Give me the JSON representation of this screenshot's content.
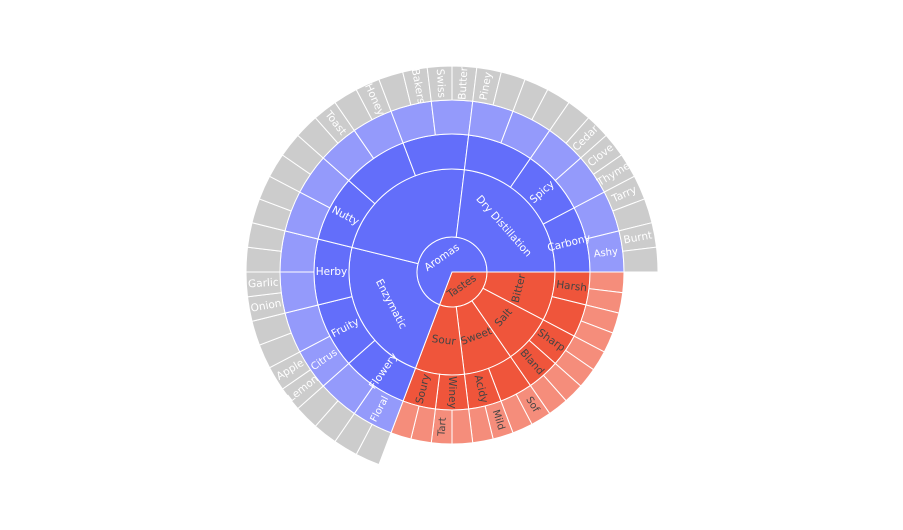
{
  "chart_data": {
    "type": "sunburst",
    "title": "",
    "colors": {
      "aromas_level1": "#636efa",
      "aromas_level2": "#636efa",
      "aromas_level3": "#636efa",
      "aromas_level4": "#949afb",
      "tastes_level1": "#ef553b",
      "tastes_level2": "#ef553b",
      "tastes_level3": "#ef553b",
      "tastes_level4": "#f58d7b",
      "label_on_dark": "#ffffff",
      "label_on_light": "#444444",
      "border": "#ffffff"
    },
    "root": {
      "children": [
        {
          "name": "Aromas",
          "group": "aromas",
          "children": [
            {
              "name": "Enzymatic",
              "children": [
                {
                  "name": "Flowery",
                  "children": [
                    {
                      "name": "Floral",
                      "children": [
                        {
                          "name": ""
                        },
                        {
                          "name": ""
                        }
                      ]
                    },
                    {
                      "name": "",
                      "children": [
                        {
                          "name": ""
                        },
                        {
                          "name": ""
                        }
                      ]
                    }
                  ]
                },
                {
                  "name": "Fruity",
                  "children": [
                    {
                      "name": "Citrus",
                      "children": [
                        {
                          "name": "Lemon"
                        },
                        {
                          "name": "Apple"
                        }
                      ]
                    },
                    {
                      "name": "",
                      "children": [
                        {
                          "name": ""
                        },
                        {
                          "name": ""
                        }
                      ]
                    }
                  ]
                },
                {
                  "name": "Herby",
                  "children": [
                    {
                      "name": "",
                      "children": [
                        {
                          "name": "Onion"
                        },
                        {
                          "name": "Garlic"
                        }
                      ]
                    },
                    {
                      "name": "",
                      "children": [
                        {
                          "name": ""
                        },
                        {
                          "name": ""
                        }
                      ]
                    }
                  ]
                }
              ]
            },
            {
              "name": "",
              "children": [
                {
                  "name": "Nutty",
                  "children": [
                    {
                      "name": "",
                      "children": [
                        {
                          "name": ""
                        },
                        {
                          "name": ""
                        }
                      ]
                    },
                    {
                      "name": "",
                      "children": [
                        {
                          "name": ""
                        },
                        {
                          "name": ""
                        }
                      ]
                    }
                  ]
                },
                {
                  "name": "",
                  "children": [
                    {
                      "name": "",
                      "children": [
                        {
                          "name": ""
                        },
                        {
                          "name": "Toast"
                        }
                      ]
                    },
                    {
                      "name": "",
                      "children": [
                        {
                          "name": ""
                        },
                        {
                          "name": "Honey"
                        }
                      ]
                    }
                  ]
                },
                {
                  "name": "",
                  "children": [
                    {
                      "name": "",
                      "children": [
                        {
                          "name": ""
                        },
                        {
                          "name": "Bakers"
                        }
                      ]
                    },
                    {
                      "name": "",
                      "children": [
                        {
                          "name": "Swiss"
                        },
                        {
                          "name": "Butter"
                        }
                      ]
                    }
                  ]
                }
              ]
            },
            {
              "name": "Dry Distillation",
              "children": [
                {
                  "name": "",
                  "children": [
                    {
                      "name": "",
                      "children": [
                        {
                          "name": "Piney"
                        },
                        {
                          "name": ""
                        }
                      ]
                    },
                    {
                      "name": "",
                      "children": [
                        {
                          "name": ""
                        },
                        {
                          "name": ""
                        }
                      ]
                    }
                  ]
                },
                {
                  "name": "Spicy",
                  "children": [
                    {
                      "name": "",
                      "children": [
                        {
                          "name": ""
                        },
                        {
                          "name": "Cedar"
                        }
                      ]
                    },
                    {
                      "name": "",
                      "children": [
                        {
                          "name": "Clove"
                        },
                        {
                          "name": "Thyme"
                        }
                      ]
                    }
                  ]
                },
                {
                  "name": "Carbony",
                  "children": [
                    {
                      "name": "",
                      "children": [
                        {
                          "name": "Tarry"
                        },
                        {
                          "name": ""
                        }
                      ]
                    },
                    {
                      "name": "Ashy",
                      "children": [
                        {
                          "name": "Burnt"
                        },
                        {
                          "name": ""
                        }
                      ]
                    }
                  ]
                }
              ]
            }
          ]
        },
        {
          "name": "Tastes",
          "group": "tastes",
          "children": [
            {
              "name": "Bitter",
              "children": [
                {
                  "name": "Harsh",
                  "children": [
                    {
                      "name": ""
                    },
                    {
                      "name": ""
                    }
                  ]
                },
                {
                  "name": "",
                  "children": [
                    {
                      "name": ""
                    },
                    {
                      "name": ""
                    }
                  ]
                }
              ]
            },
            {
              "name": "Salt",
              "children": [
                {
                  "name": "Sharp",
                  "children": [
                    {
                      "name": ""
                    },
                    {
                      "name": ""
                    }
                  ]
                },
                {
                  "name": "Bland",
                  "children": [
                    {
                      "name": ""
                    },
                    {
                      "name": ""
                    }
                  ]
                }
              ]
            },
            {
              "name": "Sweet",
              "children": [
                {
                  "name": "",
                  "children": [
                    {
                      "name": "Sof"
                    },
                    {
                      "name": ""
                    }
                  ]
                },
                {
                  "name": "Acidy",
                  "children": [
                    {
                      "name": "Mild"
                    },
                    {
                      "name": ""
                    }
                  ]
                }
              ]
            },
            {
              "name": "Sour",
              "children": [
                {
                  "name": "Winey",
                  "children": [
                    {
                      "name": ""
                    },
                    {
                      "name": "Tart"
                    }
                  ]
                },
                {
                  "name": "Soury",
                  "children": [
                    {
                      "name": ""
                    },
                    {
                      "name": ""
                    }
                  ]
                }
              ]
            }
          ]
        }
      ]
    }
  }
}
